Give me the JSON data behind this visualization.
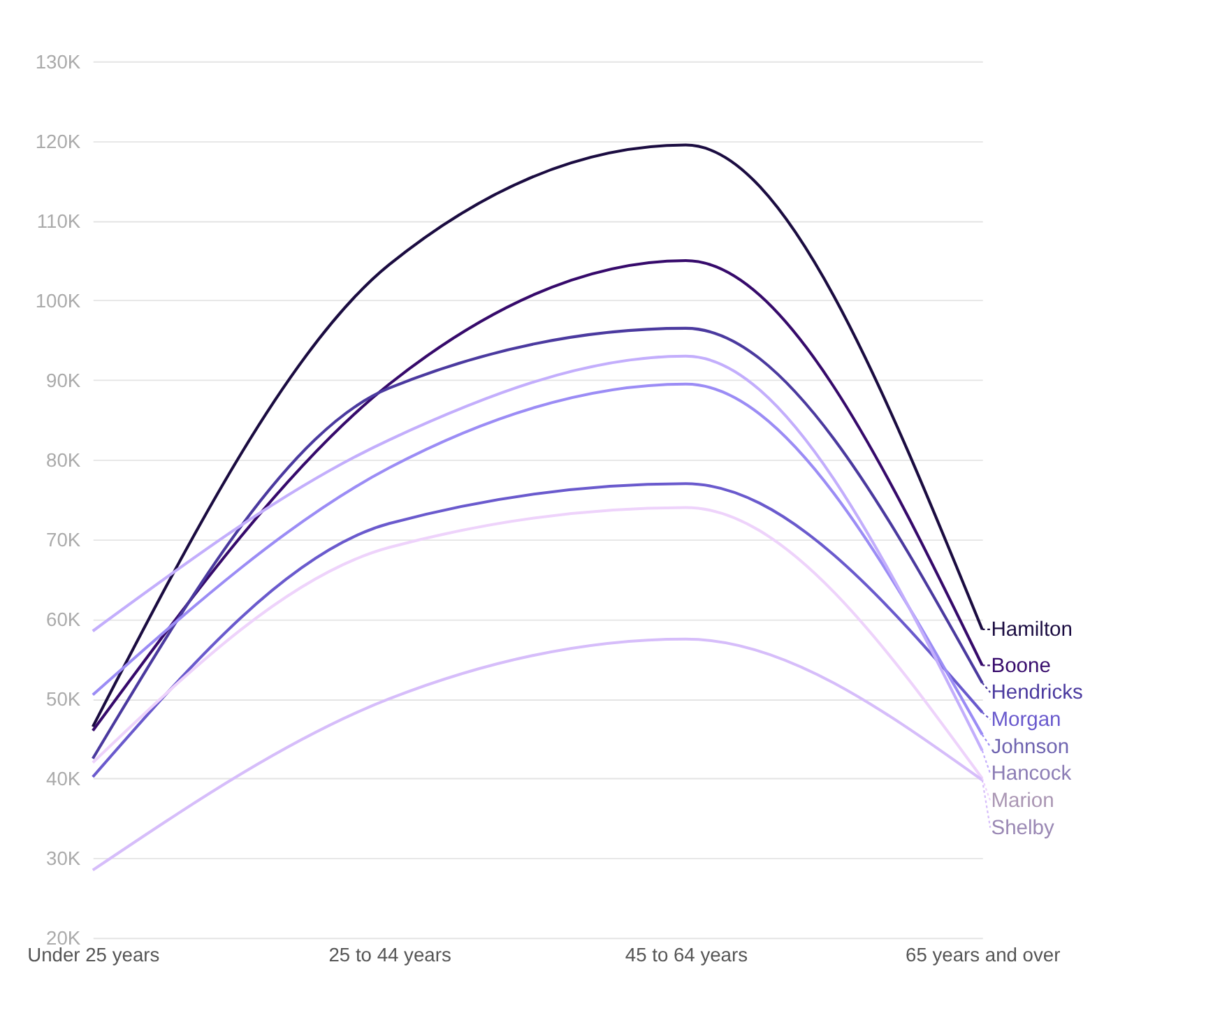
{
  "chart_data": {
    "type": "line",
    "categories": [
      "Under 25 years",
      "25 to 44 years",
      "45 to 64 years",
      "65 years and over"
    ],
    "series": [
      {
        "name": "Hamilton",
        "color": "#1b0c41",
        "values": [
          46500,
          104500,
          119500,
          58700
        ]
      },
      {
        "name": "Boone",
        "color": "#360a6b",
        "values": [
          46000,
          89500,
          105000,
          54200
        ]
      },
      {
        "name": "Hendricks",
        "color": "#4b3a9f",
        "values": [
          42500,
          89000,
          96500,
          52000
        ]
      },
      {
        "name": "Morgan",
        "color": "#6a5acd",
        "values": [
          40200,
          72000,
          77000,
          48300
        ]
      },
      {
        "name": "Johnson",
        "color": "#9b8cf5",
        "values": [
          50500,
          79000,
          89500,
          45500
        ]
      },
      {
        "name": "Hancock",
        "color": "#c3aefc",
        "values": [
          58500,
          82500,
          93000,
          43500
        ]
      },
      {
        "name": "Marion",
        "color": "#eed3fb",
        "values": [
          42000,
          69000,
          74000,
          40000
        ]
      },
      {
        "name": "Shelby",
        "color": "#d6bdfa",
        "values": [
          28500,
          50000,
          57500,
          39800
        ]
      }
    ],
    "ylim": [
      20000,
      130000
    ],
    "yticks": [
      {
        "value": 20000,
        "label": "20K"
      },
      {
        "value": 30000,
        "label": "30K"
      },
      {
        "value": 40000,
        "label": "40K"
      },
      {
        "value": 50000,
        "label": "50K"
      },
      {
        "value": 60000,
        "label": "60K"
      },
      {
        "value": 70000,
        "label": "70K"
      },
      {
        "value": 80000,
        "label": "80K"
      },
      {
        "value": 90000,
        "label": "90K"
      },
      {
        "value": 100000,
        "label": "100K"
      },
      {
        "value": 110000,
        "label": "110K"
      },
      {
        "value": 120000,
        "label": "120K"
      },
      {
        "value": 130000,
        "label": "130K"
      }
    ],
    "grid": "y",
    "legend": "right",
    "marker": "none",
    "line_style": "solid"
  }
}
